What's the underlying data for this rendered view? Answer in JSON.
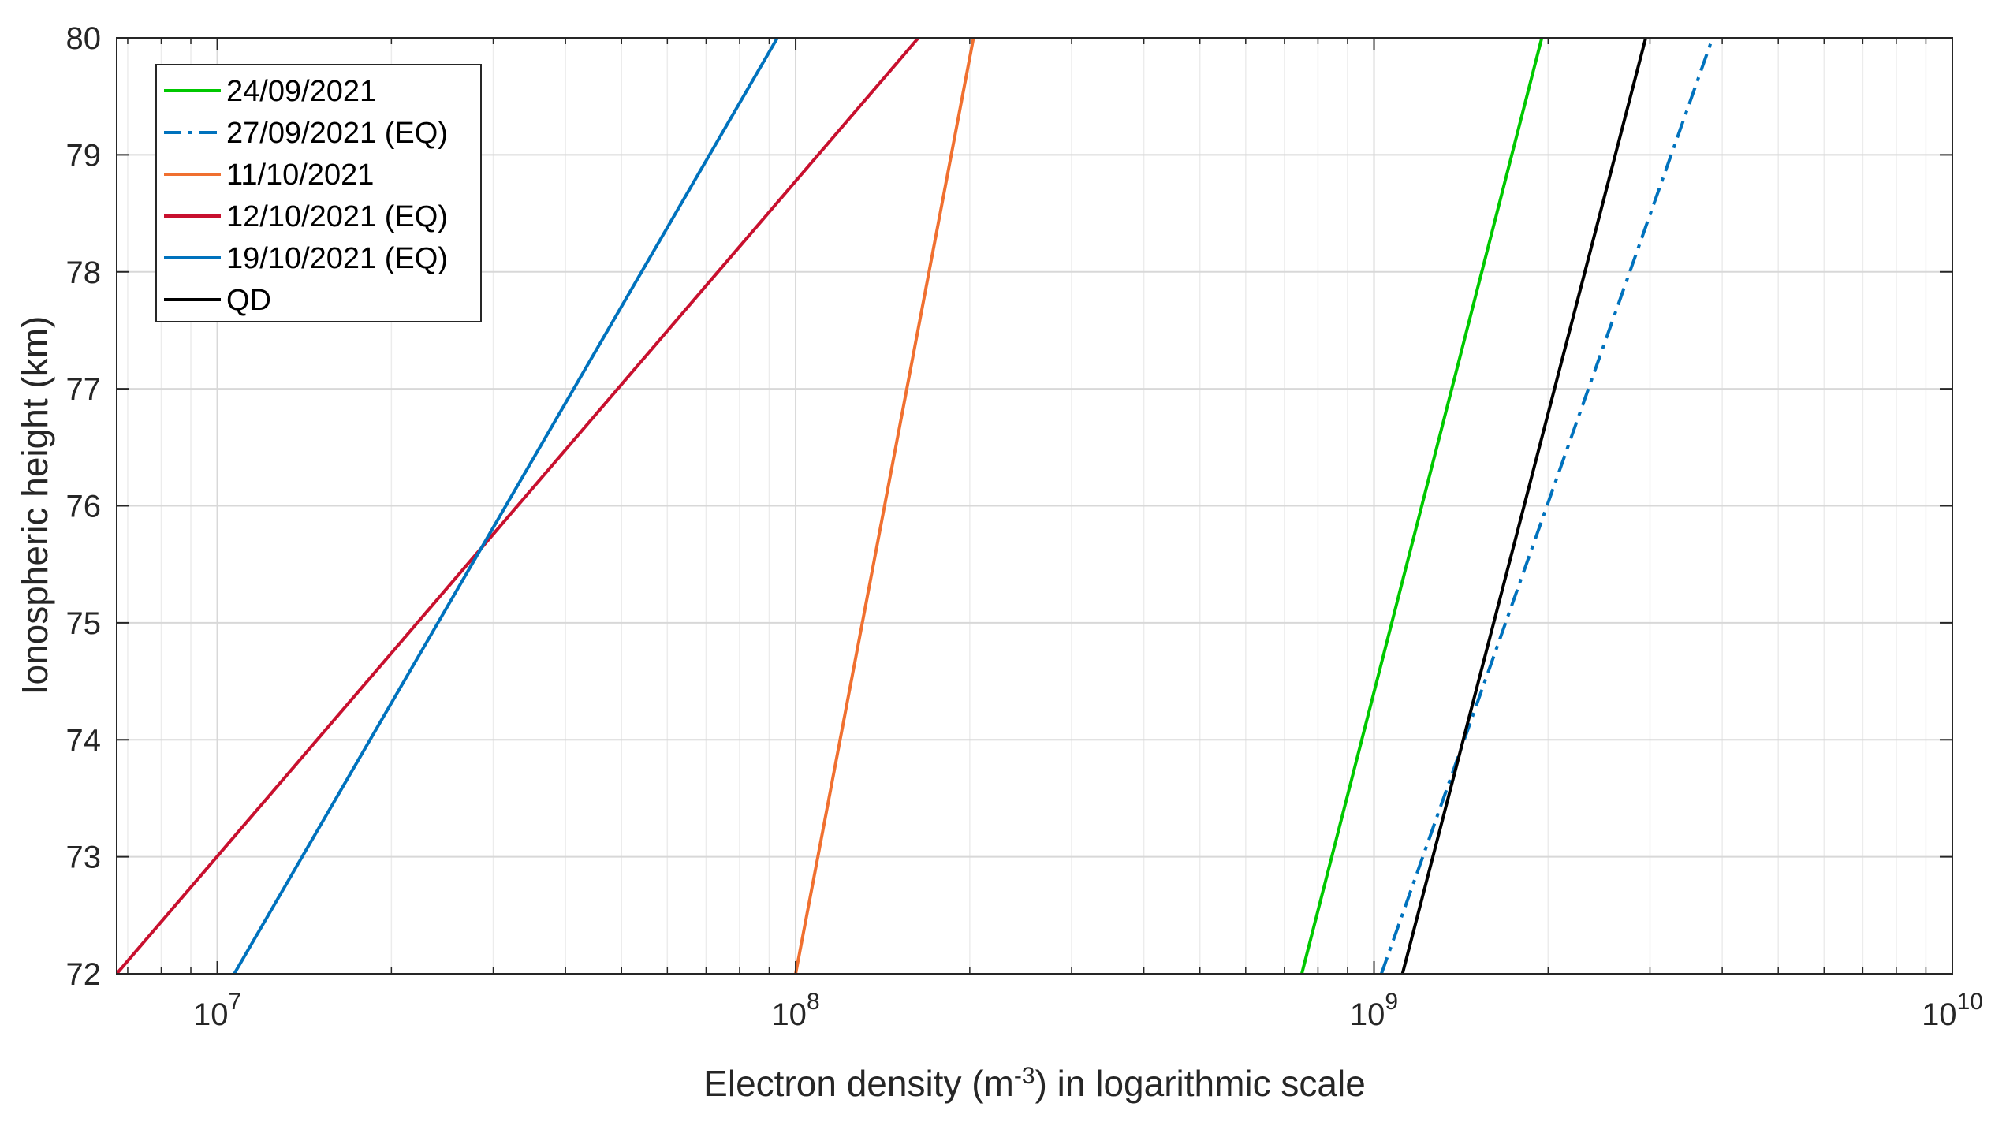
{
  "chart_data": {
    "type": "line",
    "title": "",
    "xlabel": {
      "prefix": "Electron density (m",
      "superscript": "-3",
      "suffix": ") in logarithmic scale"
    },
    "ylabel": "Ionospheric height (km)",
    "xscale": "log",
    "xlim": [
      6700000,
      10000000000
    ],
    "ylim": [
      72,
      80
    ],
    "grid": true,
    "x_ticks": [
      {
        "value": 10000000,
        "base": "10",
        "exp": "7"
      },
      {
        "value": 100000000,
        "base": "10",
        "exp": "8"
      },
      {
        "value": 1000000000,
        "base": "10",
        "exp": "9"
      },
      {
        "value": 10000000000,
        "base": "10",
        "exp": "10"
      }
    ],
    "y_ticks": [
      "72",
      "73",
      "74",
      "75",
      "76",
      "77",
      "78",
      "79",
      "80"
    ],
    "legend_position": "top-left",
    "series": [
      {
        "name": "24/09/2021",
        "color": "#00c800",
        "dash": "solid",
        "x": [
          750000000,
          1950000000
        ],
        "y": [
          72,
          80
        ]
      },
      {
        "name": "27/09/2021 (EQ)",
        "color": "#0072bd",
        "dash": "dashdot",
        "x": [
          1030000000,
          3850000000
        ],
        "y": [
          72,
          80
        ]
      },
      {
        "name": "11/10/2021",
        "color": "#f07030",
        "dash": "solid",
        "x": [
          100000000,
          203000000
        ],
        "y": [
          72,
          80
        ]
      },
      {
        "name": "12/10/2021 (EQ)",
        "color": "#c8102e",
        "dash": "solid",
        "x": [
          6700000,
          163000000
        ],
        "y": [
          72,
          80
        ]
      },
      {
        "name": "19/10/2021 (EQ)",
        "color": "#0072bd",
        "dash": "solid",
        "x": [
          10700000,
          93000000
        ],
        "y": [
          72,
          80
        ]
      },
      {
        "name": "QD",
        "color": "#000000",
        "dash": "solid",
        "x": [
          1120000000,
          2950000000
        ],
        "y": [
          72,
          80
        ]
      }
    ]
  }
}
